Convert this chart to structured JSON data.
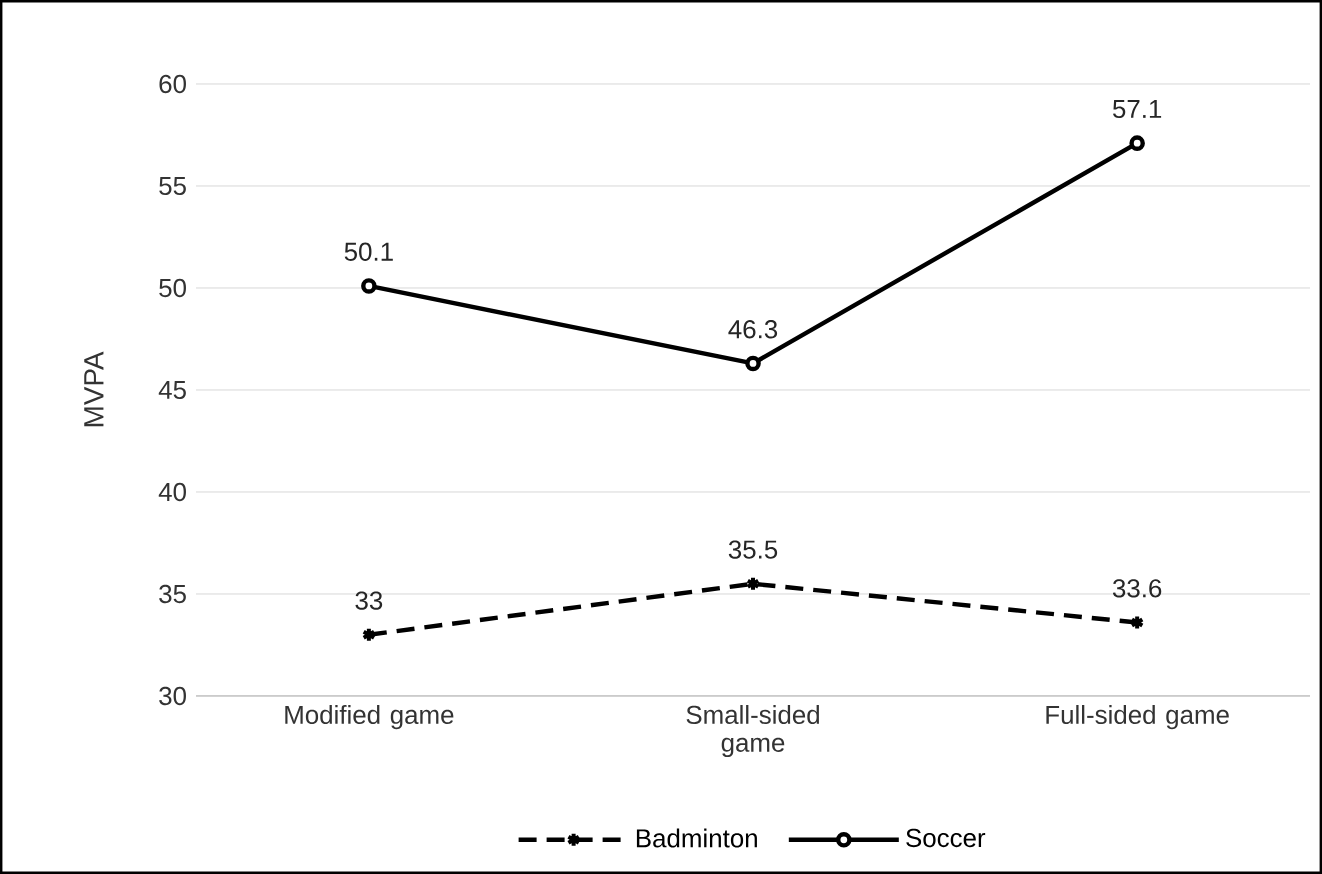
{
  "chart_data": {
    "type": "line",
    "ylabel": "MVPA",
    "categories": [
      "Modified game",
      "Small-sided game",
      "Full-sided game"
    ],
    "series": [
      {
        "name": "Badminton",
        "color": "#000000",
        "values": [
          33,
          35.5,
          33.6
        ],
        "value_labels": [
          "33",
          "35.5",
          "33.6"
        ],
        "marker": "cross",
        "line_style": "dashed"
      },
      {
        "name": "Soccer",
        "color": "#000000",
        "values": [
          50.1,
          46.3,
          57.1
        ],
        "value_labels": [
          "50.1",
          "46.3",
          "57.1"
        ],
        "marker": "circle",
        "line_style": "solid"
      }
    ],
    "ylim": [
      30,
      60
    ],
    "yticks": [
      30,
      35,
      40,
      45,
      50,
      55,
      60
    ],
    "grid": "y",
    "legend": "bottom"
  }
}
